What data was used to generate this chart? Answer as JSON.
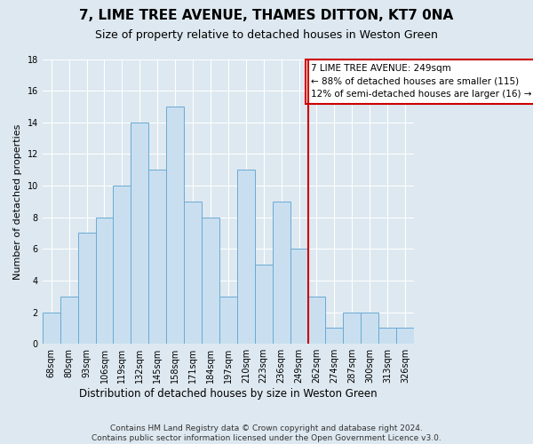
{
  "title": "7, LIME TREE AVENUE, THAMES DITTON, KT7 0NA",
  "subtitle": "Size of property relative to detached houses in Weston Green",
  "xlabel": "Distribution of detached houses by size in Weston Green",
  "ylabel": "Number of detached properties",
  "categories": [
    "68sqm",
    "80sqm",
    "93sqm",
    "106sqm",
    "119sqm",
    "132sqm",
    "145sqm",
    "158sqm",
    "171sqm",
    "184sqm",
    "197sqm",
    "210sqm",
    "223sqm",
    "236sqm",
    "249sqm",
    "262sqm",
    "274sqm",
    "287sqm",
    "300sqm",
    "313sqm",
    "326sqm"
  ],
  "values": [
    2,
    3,
    7,
    8,
    10,
    14,
    11,
    15,
    9,
    8,
    3,
    11,
    5,
    9,
    6,
    3,
    1,
    2,
    2,
    1,
    1
  ],
  "bar_color": "#c9dff0",
  "bar_edge_color": "#6aaad4",
  "vline_x": 14.5,
  "vline_color": "#cc0000",
  "annotation_text": "7 LIME TREE AVENUE: 249sqm\n← 88% of detached houses are smaller (115)\n12% of semi-detached houses are larger (16) →",
  "annotation_box_color": "#ffffff",
  "annotation_box_edge": "#cc0000",
  "ylim": [
    0,
    18
  ],
  "yticks": [
    0,
    2,
    4,
    6,
    8,
    10,
    12,
    14,
    16,
    18
  ],
  "bg_color": "#dde8f0",
  "plot_bg_color": "#dde8f0",
  "footer": "Contains HM Land Registry data © Crown copyright and database right 2024.\nContains public sector information licensed under the Open Government Licence v3.0.",
  "title_fontsize": 11,
  "subtitle_fontsize": 9,
  "xlabel_fontsize": 8.5,
  "ylabel_fontsize": 8,
  "annotation_fontsize": 7.5,
  "tick_fontsize": 7,
  "footer_fontsize": 6.5
}
